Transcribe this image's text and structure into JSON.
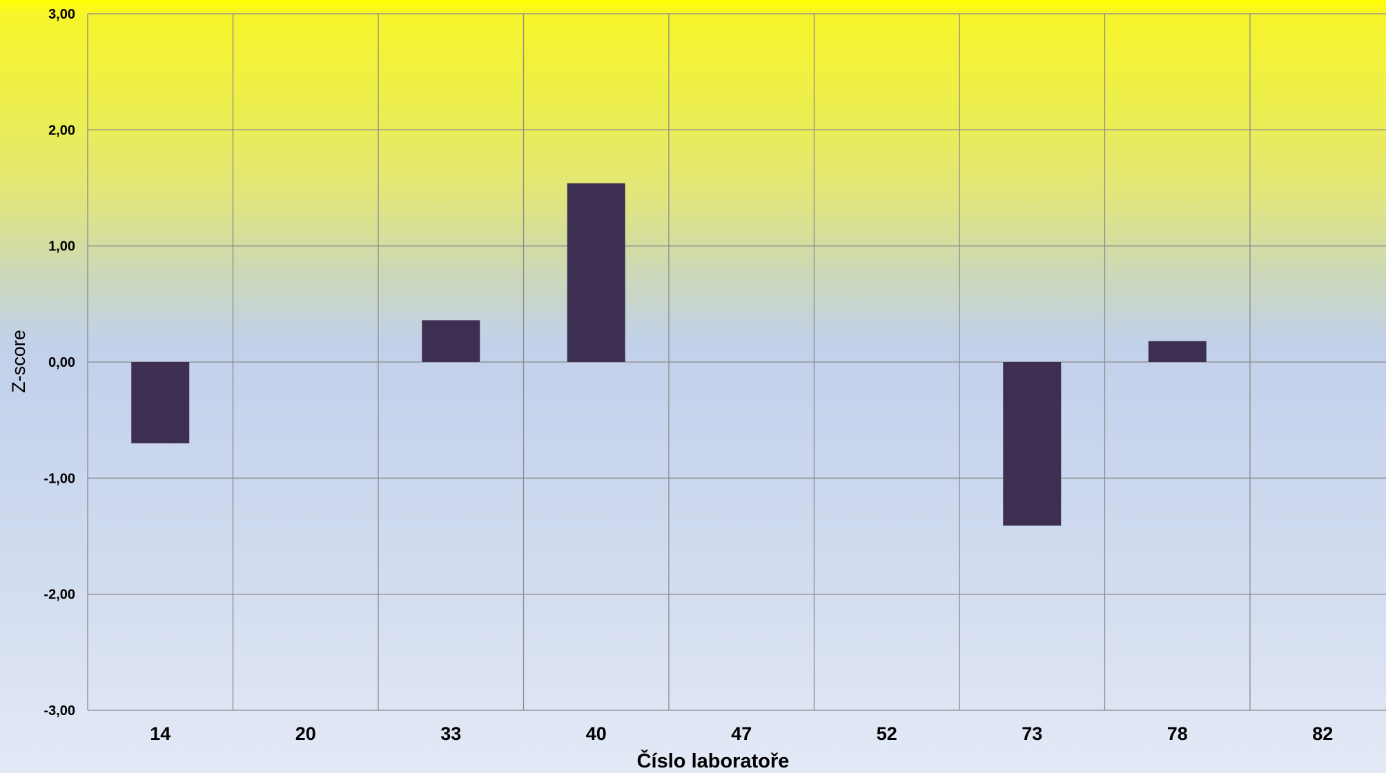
{
  "chart_data": {
    "type": "bar",
    "title": "",
    "xlabel": "Číslo laboratoře",
    "ylabel": "Z-score",
    "categories": [
      "14",
      "20",
      "33",
      "40",
      "47",
      "52",
      "73",
      "78",
      "82"
    ],
    "values": [
      -0.7,
      0,
      0.36,
      1.54,
      0,
      0,
      -1.41,
      0.18,
      0
    ],
    "ylim": [
      -3,
      3
    ],
    "yticks": [
      3,
      2,
      1,
      0,
      -1,
      -2,
      -3
    ],
    "ytick_labels": [
      "3,00",
      "2,00",
      "1,00",
      "0,00",
      "-1,00",
      "-2,00",
      "-3,00"
    ],
    "grid": true,
    "legend": "none",
    "colors": {
      "bar": "#3c2f52",
      "grid": "#8a8a8a",
      "text": "#000000",
      "background_top": "#ffff00",
      "background_bottom": "#e3e9f6"
    }
  }
}
